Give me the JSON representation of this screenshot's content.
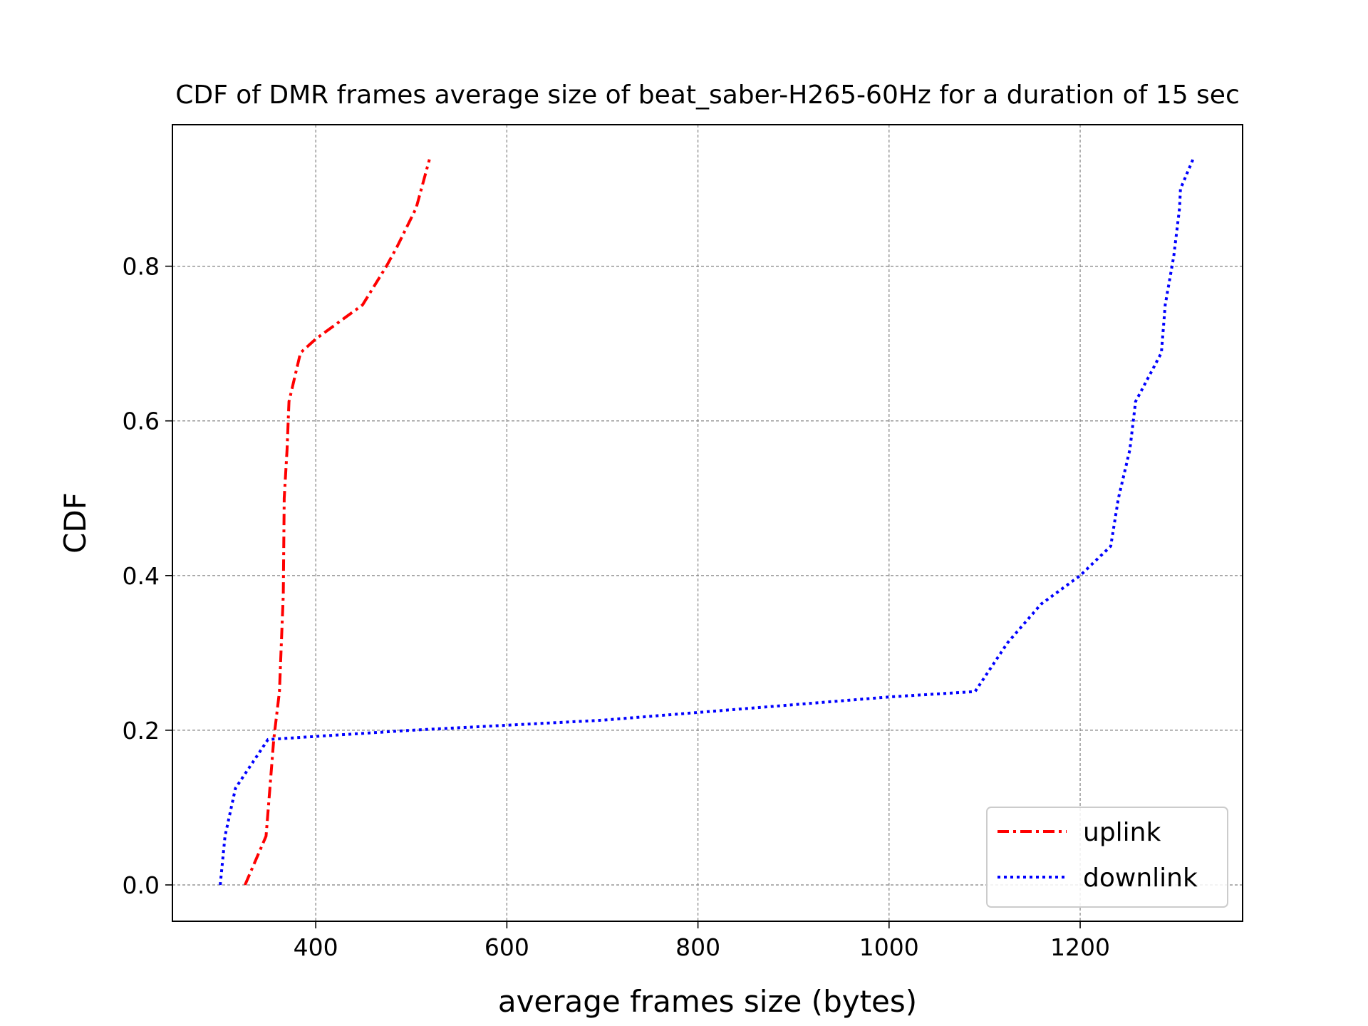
{
  "chart_data": {
    "type": "line",
    "title": "CDF of DMR frames average size of beat_saber-H265-60Hz for a duration of 15 sec",
    "xlabel": "average frames size (bytes)",
    "ylabel": "CDF",
    "xlim": [
      250,
      1370
    ],
    "ylim": [
      -0.047,
      0.983
    ],
    "xticks": [
      400,
      600,
      800,
      1000,
      1200
    ],
    "yticks": [
      0.0,
      0.2,
      0.4,
      0.6,
      0.8
    ],
    "xtick_labels": [
      "400",
      "600",
      "800",
      "1000",
      "1200"
    ],
    "ytick_labels": [
      "0.0",
      "0.2",
      "0.4",
      "0.6",
      "0.8"
    ],
    "grid": true,
    "legend_position": "lower-right",
    "series": [
      {
        "name": "uplink",
        "color": "#ff0000",
        "style": "dashdot",
        "x": [
          326,
          348,
          352,
          356,
          362,
          364,
          366,
          367,
          370,
          372,
          384,
          400,
          449,
          474,
          485,
          505,
          519
        ],
        "y": [
          0.0,
          0.063,
          0.125,
          0.188,
          0.25,
          0.313,
          0.375,
          0.5,
          0.563,
          0.625,
          0.688,
          0.706,
          0.75,
          0.8,
          0.825,
          0.875,
          0.938
        ]
      },
      {
        "name": "downlink",
        "color": "#0000ff",
        "style": "dotted",
        "x": [
          300,
          305,
          316,
          350,
          500,
          700,
          1000,
          1090,
          1124,
          1159,
          1200,
          1232,
          1240,
          1252,
          1258,
          1285,
          1289,
          1298,
          1304,
          1305,
          1318
        ],
        "y": [
          0.0,
          0.063,
          0.125,
          0.188,
          0.2,
          0.213,
          0.243,
          0.25,
          0.313,
          0.363,
          0.4,
          0.438,
          0.5,
          0.563,
          0.625,
          0.688,
          0.75,
          0.813,
          0.875,
          0.9,
          0.938
        ]
      }
    ]
  }
}
